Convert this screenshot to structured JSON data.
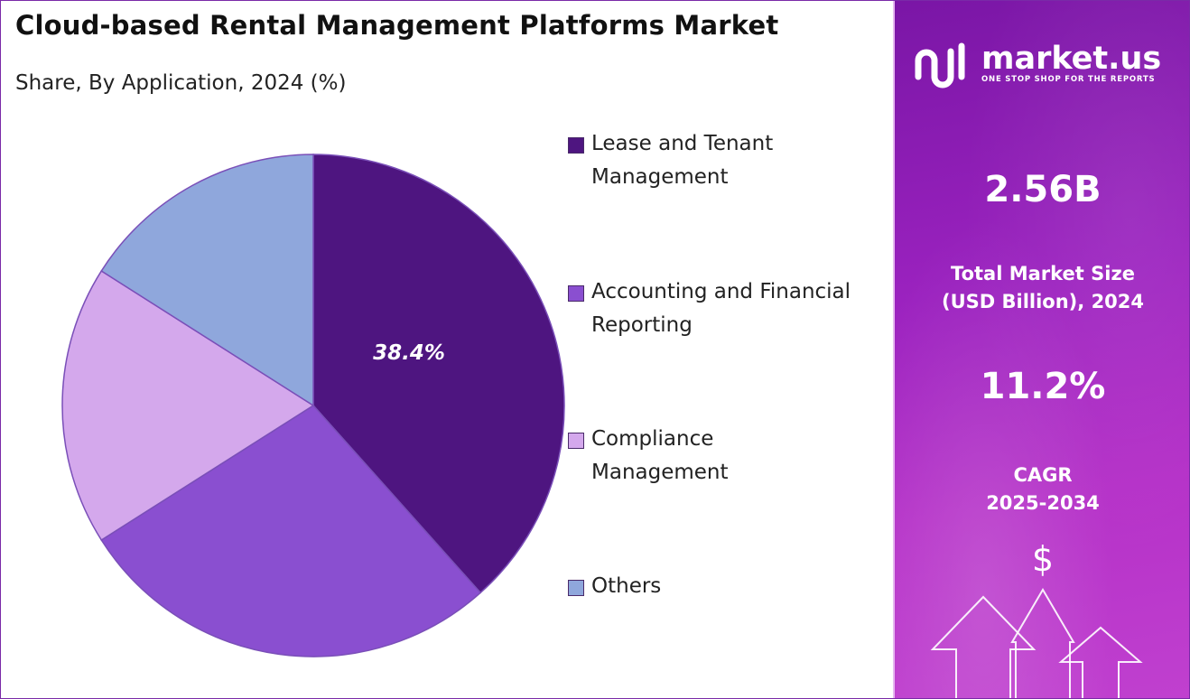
{
  "title": "Cloud-based Rental Management Platforms Market",
  "subtitle": "Share, By Application, 2024 (%)",
  "chart_data": {
    "type": "pie",
    "title": "Cloud-based Rental Management Platforms Market",
    "subtitle": "Share, By Application, 2024 (%)",
    "labels": [
      "Lease and Tenant Management",
      "Accounting and Financial Reporting",
      "Compliance Management",
      "Others"
    ],
    "values": [
      38.4,
      27.6,
      18.0,
      16.0
    ],
    "colors": [
      "#4e1580",
      "#8a4fd0",
      "#d4a8ec",
      "#8fa7dc"
    ],
    "data_labels": [
      "38.4%",
      "",
      "",
      ""
    ],
    "legend_position": "right"
  },
  "legend": {
    "items": [
      {
        "line1": "Lease and Tenant",
        "line2": "Management",
        "color": "#4e1580"
      },
      {
        "line1": "Accounting and Financial",
        "line2": "Reporting",
        "color": "#8a4fd0"
      },
      {
        "line1": "Compliance",
        "line2": "Management",
        "color": "#d4a8ec"
      },
      {
        "line1": "Others",
        "line2": "",
        "color": "#8fa7dc"
      }
    ]
  },
  "sidebar": {
    "logo_name": "market.us",
    "logo_tagline": "ONE STOP SHOP FOR THE REPORTS",
    "market_size_value": "2.56B",
    "market_size_label_line1": "Total Market Size",
    "market_size_label_line2": "(USD Billion), 2024",
    "cagr_value": "11.2%",
    "cagr_label_line1": "CAGR",
    "cagr_label_line2": "2025-2034",
    "currency_symbol": "$",
    "background_color": "#9b22bf"
  }
}
